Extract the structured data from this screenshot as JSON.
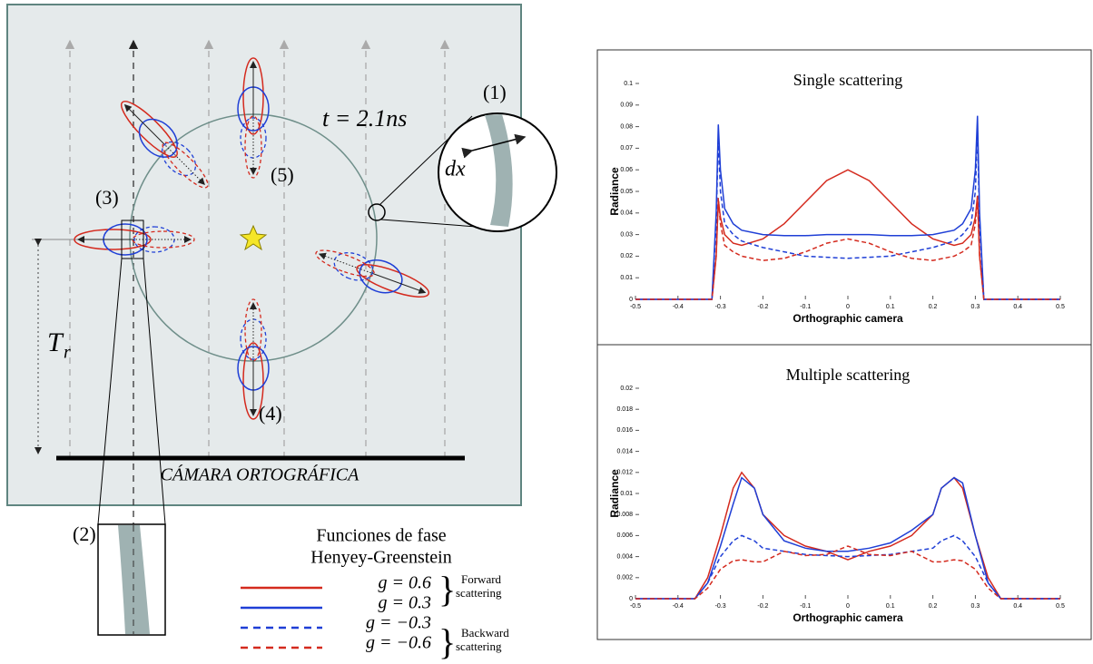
{
  "diagram": {
    "label_1": "(1)",
    "label_2": "(2)",
    "label_3": "(3)",
    "label_4": "(4)",
    "label_5": "(5)",
    "time": "t = 2.1ns",
    "dx": "dx",
    "tr_main": "T",
    "tr_sub": "r",
    "camera": "CÁMARA ORTOGRÁFICA",
    "legend_title_1": "Funciones de fase",
    "legend_title_2": "Henyey-Greenstein",
    "forward_1": "Forward",
    "forward_2": "scattering",
    "backward_1": "Backward",
    "backward_2": "scattering"
  },
  "chart_data": [
    {
      "type": "line",
      "title": "Single scattering",
      "x_label": "Orthographic camera",
      "y_label": "Radiance",
      "x": [
        -0.5,
        -0.32,
        -0.31,
        -0.305,
        -0.3,
        -0.29,
        -0.27,
        -0.25,
        -0.2,
        -0.15,
        -0.1,
        -0.05,
        0,
        0.05,
        0.1,
        0.15,
        0.2,
        0.25,
        0.27,
        0.29,
        0.3,
        0.305,
        0.31,
        0.32,
        0.5
      ],
      "series": [
        {
          "name": "g = 0.6",
          "color": "#d42a1e",
          "dashed": false,
          "values": [
            0,
            0,
            0.02,
            0.046,
            0.038,
            0.03,
            0.026,
            0.025,
            0.028,
            0.035,
            0.045,
            0.055,
            0.06,
            0.055,
            0.045,
            0.035,
            0.028,
            0.025,
            0.026,
            0.03,
            0.038,
            0.048,
            0.02,
            0,
            0
          ]
        },
        {
          "name": "g = 0.3",
          "color": "#1f3fd6",
          "dashed": false,
          "values": [
            0,
            0,
            0.04,
            0.081,
            0.06,
            0.042,
            0.035,
            0.032,
            0.03,
            0.0295,
            0.0295,
            0.03,
            0.03,
            0.03,
            0.0295,
            0.0295,
            0.03,
            0.032,
            0.035,
            0.042,
            0.06,
            0.085,
            0.04,
            0,
            0
          ]
        },
        {
          "name": "g = −0.3",
          "color": "#1f3fd6",
          "dashed": true,
          "values": [
            0,
            0,
            0.035,
            0.075,
            0.05,
            0.035,
            0.03,
            0.027,
            0.024,
            0.022,
            0.02,
            0.0195,
            0.019,
            0.0195,
            0.02,
            0.022,
            0.024,
            0.027,
            0.03,
            0.035,
            0.05,
            0.078,
            0.035,
            0,
            0
          ]
        },
        {
          "name": "g = −0.6",
          "color": "#d42a1e",
          "dashed": true,
          "values": [
            0,
            0,
            0.02,
            0.047,
            0.035,
            0.025,
            0.022,
            0.02,
            0.018,
            0.019,
            0.022,
            0.026,
            0.028,
            0.026,
            0.022,
            0.019,
            0.018,
            0.02,
            0.022,
            0.025,
            0.035,
            0.047,
            0.02,
            0,
            0
          ]
        }
      ],
      "xlim": [
        -0.5,
        0.5
      ],
      "xticks": [
        -0.5,
        -0.4,
        -0.3,
        -0.2,
        -0.1,
        0,
        0.1,
        0.2,
        0.3,
        0.4,
        0.5
      ],
      "ylim": [
        0,
        0.1
      ],
      "yticks": [
        0,
        0.01,
        0.02,
        0.03,
        0.04,
        0.05,
        0.06,
        0.07,
        0.08,
        0.09,
        0.1
      ]
    },
    {
      "type": "line",
      "title": "Multiple scattering",
      "x_label": "Orthographic camera",
      "y_label": "Radiance",
      "x": [
        -0.5,
        -0.36,
        -0.33,
        -0.3,
        -0.27,
        -0.25,
        -0.22,
        -0.2,
        -0.15,
        -0.1,
        -0.05,
        0,
        0.05,
        0.1,
        0.15,
        0.2,
        0.22,
        0.25,
        0.27,
        0.3,
        0.33,
        0.36,
        0.5
      ],
      "series": [
        {
          "name": "g = 0.6",
          "color": "#d42a1e",
          "dashed": false,
          "values": [
            0,
            0,
            0.002,
            0.006,
            0.0105,
            0.012,
            0.0105,
            0.008,
            0.006,
            0.005,
            0.0045,
            0.0037,
            0.0045,
            0.005,
            0.006,
            0.008,
            0.0105,
            0.0115,
            0.0105,
            0.006,
            0.002,
            0,
            0
          ]
        },
        {
          "name": "g = 0.3",
          "color": "#1f3fd6",
          "dashed": false,
          "values": [
            0,
            0,
            0.0015,
            0.005,
            0.009,
            0.0115,
            0.0105,
            0.008,
            0.0055,
            0.0048,
            0.0045,
            0.0045,
            0.0048,
            0.0053,
            0.0065,
            0.008,
            0.0105,
            0.0115,
            0.011,
            0.006,
            0.0015,
            0,
            0
          ]
        },
        {
          "name": "g = −0.3",
          "color": "#1f3fd6",
          "dashed": true,
          "values": [
            0,
            0,
            0.0015,
            0.004,
            0.0055,
            0.006,
            0.0055,
            0.0048,
            0.0045,
            0.0042,
            0.0041,
            0.004,
            0.0041,
            0.0042,
            0.0045,
            0.0048,
            0.0055,
            0.006,
            0.0055,
            0.004,
            0.0015,
            0,
            0
          ]
        },
        {
          "name": "g = −0.6",
          "color": "#d42a1e",
          "dashed": true,
          "values": [
            0,
            0,
            0.001,
            0.0028,
            0.0036,
            0.0037,
            0.0035,
            0.0035,
            0.0045,
            0.0041,
            0.0042,
            0.005,
            0.0042,
            0.0041,
            0.0045,
            0.0035,
            0.0035,
            0.0037,
            0.0036,
            0.0028,
            0.001,
            0,
            0
          ]
        }
      ],
      "xlim": [
        -0.5,
        0.5
      ],
      "xticks": [
        -0.5,
        -0.4,
        -0.3,
        -0.2,
        -0.1,
        0,
        0.1,
        0.2,
        0.3,
        0.4,
        0.5
      ],
      "ylim": [
        0,
        0.02
      ],
      "yticks": [
        0,
        0.002,
        0.004,
        0.006,
        0.008,
        0.01,
        0.012,
        0.014,
        0.016,
        0.018,
        0.02
      ]
    }
  ]
}
